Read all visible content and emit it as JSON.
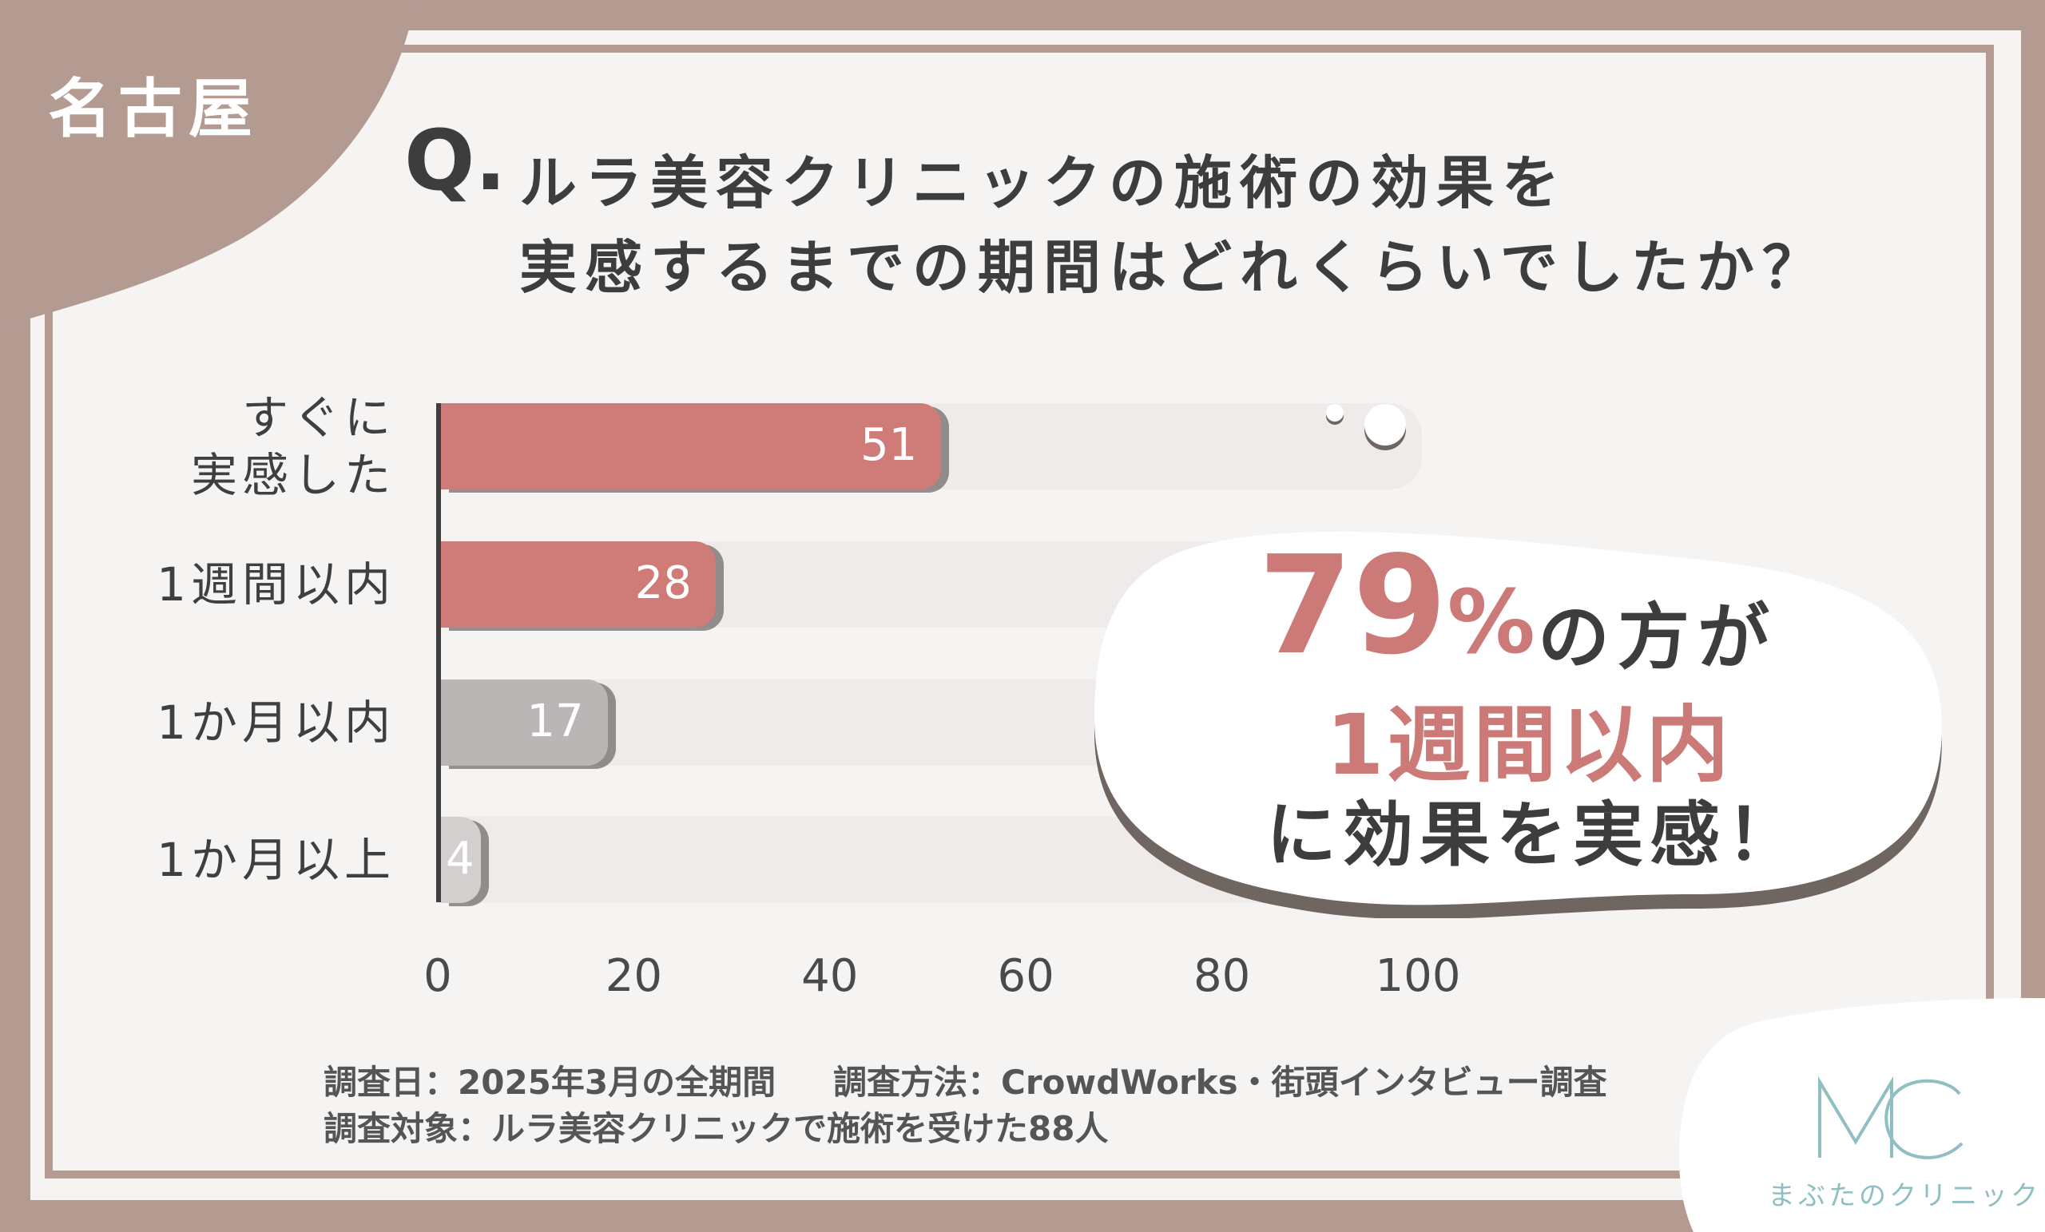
{
  "region_label": "名古屋",
  "question": {
    "q_mark": "Q.",
    "line1": "ルラ美容クリニックの施術の効果を",
    "line2": "実感するまでの期間はどれくらいでしたか？"
  },
  "chart_data": {
    "type": "bar",
    "orientation": "horizontal",
    "categories": [
      "すぐに実感した",
      "1週間以内",
      "1か月以内",
      "1か月以上"
    ],
    "category_lines": [
      [
        "すぐに",
        "実感した"
      ],
      [
        "1週間以内"
      ],
      [
        "1か月以内"
      ],
      [
        "1か月以上"
      ]
    ],
    "values": [
      51,
      28,
      17,
      4
    ],
    "value_labels": [
      "51",
      "28",
      "17",
      "4"
    ],
    "bar_colors": [
      "#cf7b77",
      "#cf7b77",
      "#b9b6b5",
      "#d2cfce"
    ],
    "xlim": [
      0,
      100
    ],
    "x_ticks": [
      "0",
      "20",
      "40",
      "60",
      "80",
      "100"
    ],
    "grid": false,
    "xlabel": "",
    "ylabel": ""
  },
  "highlight": {
    "percent_value": "79",
    "percent_sign": "%",
    "line1_rest": "の方が",
    "line2": "1週間以内",
    "line3": "に効果を実感！"
  },
  "notes": {
    "date": "調査日：2025年3月の全期間",
    "method": "調査方法：CrowdWorks・街頭インタビュー調査",
    "target": "調査対象：ルラ美容クリニックで施術を受けた88人"
  },
  "logo": {
    "mark": "MC",
    "name": "まぶたのクリニック"
  },
  "colors": {
    "frame": "#b49b92",
    "accent": "#cc7a78",
    "logo": "#8fbfc0"
  }
}
